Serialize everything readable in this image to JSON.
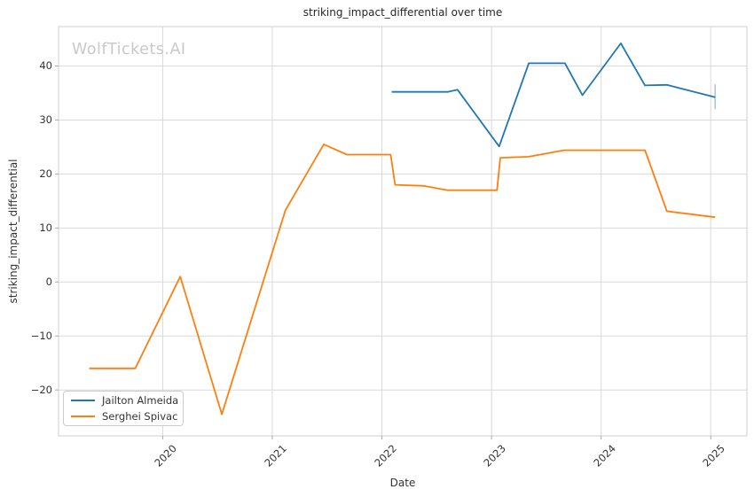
{
  "watermark": "WolfTickets.AI",
  "chart_data": {
    "type": "line",
    "title": "striking_impact_differential over time",
    "xlabel": "Date",
    "ylabel": "striking_impact_differential",
    "xlim": [
      2019.05,
      2025.33
    ],
    "ylim": [
      -28.5,
      47.3
    ],
    "grid": true,
    "legend_position": "lower-left",
    "x_ticks": [
      {
        "value": 2020,
        "label": "2020"
      },
      {
        "value": 2021,
        "label": "2021"
      },
      {
        "value": 2022,
        "label": "2022"
      },
      {
        "value": 2023,
        "label": "2023"
      },
      {
        "value": 2024,
        "label": "2024"
      },
      {
        "value": 2025,
        "label": "2025"
      }
    ],
    "y_ticks": [
      {
        "value": -20,
        "label": "−20"
      },
      {
        "value": -10,
        "label": "−10"
      },
      {
        "value": 0,
        "label": "0"
      },
      {
        "value": 10,
        "label": "10"
      },
      {
        "value": 20,
        "label": "20"
      },
      {
        "value": 30,
        "label": "30"
      },
      {
        "value": 40,
        "label": "40"
      }
    ],
    "series": [
      {
        "name": "Jailton Almeida",
        "color": "#1f77b4",
        "x": [
          2022.09,
          2022.6,
          2022.69,
          2023.07,
          2023.34,
          2023.67,
          2023.83,
          2024.18,
          2024.4,
          2024.6,
          2025.04
        ],
        "y": [
          35.2,
          35.2,
          35.6,
          25.1,
          40.5,
          40.5,
          34.6,
          44.2,
          36.4,
          36.5,
          34.2
        ]
      },
      {
        "name": "Serghei Spivac",
        "color": "#ff7f0e",
        "x": [
          2019.33,
          2019.75,
          2020.16,
          2020.54,
          2021.12,
          2021.47,
          2021.68,
          2022.08,
          2022.12,
          2022.38,
          2022.6,
          2023.05,
          2023.08,
          2023.34,
          2023.66,
          2024.4,
          2024.6,
          2025.04
        ],
        "y": [
          -16,
          -16,
          1,
          -24.5,
          13.3,
          25.5,
          23.6,
          23.6,
          18,
          17.8,
          17,
          17,
          23,
          23.2,
          24.4,
          24.4,
          13.1,
          12
        ]
      }
    ],
    "error_bar": {
      "series": "Jailton Almeida",
      "x": 2025.04,
      "y_low": 32.0,
      "y_high": 36.6,
      "color": "#a8c8e0"
    }
  }
}
